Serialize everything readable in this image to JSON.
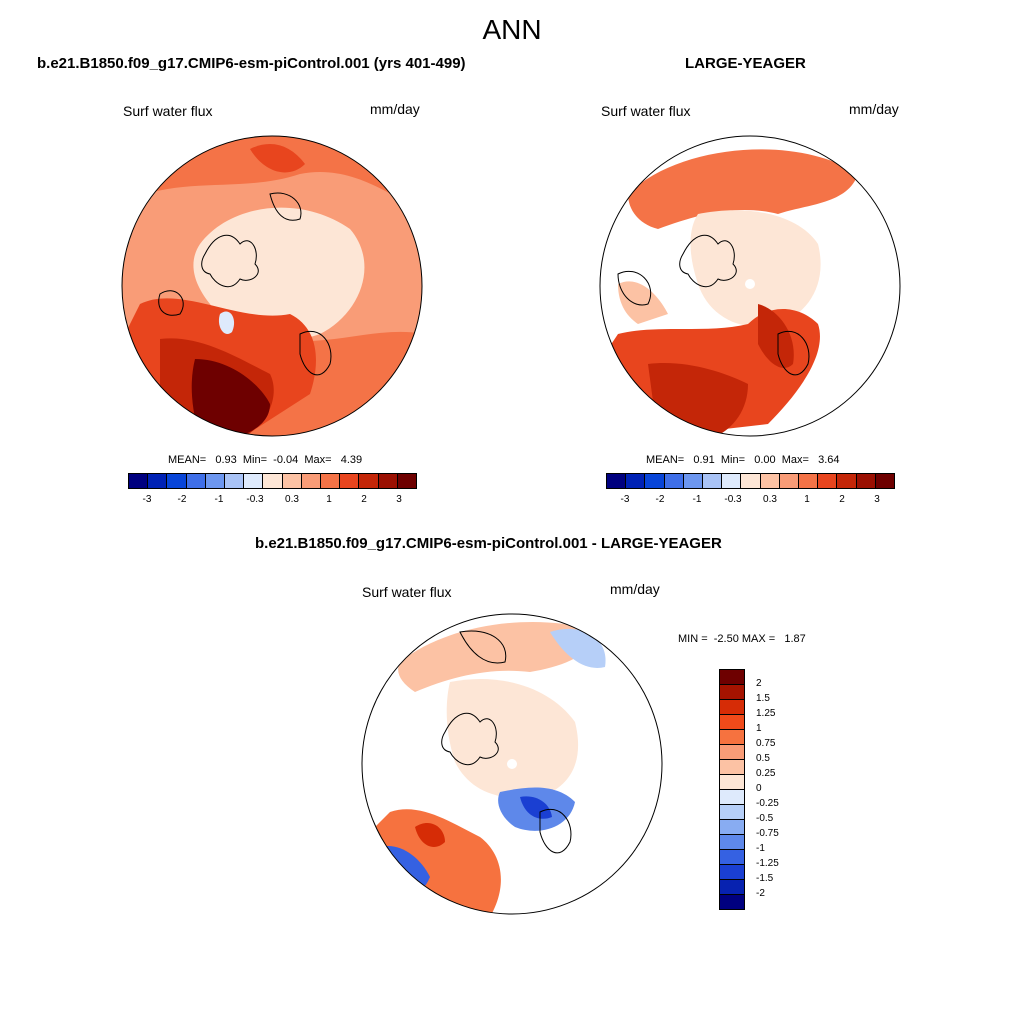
{
  "title": "ANN",
  "panels": [
    {
      "heading": "b.e21.B1850.f09_g17.CMIP6-esm-piControl.001 (yrs 401-499)",
      "variable": "Surf water flux",
      "units": "mm/day",
      "stats": "MEAN=   0.93  Min=  -0.04  Max=   4.39"
    },
    {
      "heading": "LARGE-YEAGER",
      "variable": "Surf water flux",
      "units": "mm/day",
      "stats": "MEAN=   0.91  Min=   0.00  Max=   3.64"
    },
    {
      "heading": "b.e21.B1850.f09_g17.CMIP6-esm-piControl.001 - LARGE-YEAGER",
      "variable": "Surf water flux",
      "units": "mm/day",
      "stats": "MIN =  -2.50 MAX =   1.87"
    }
  ],
  "colorbar_main": {
    "colors": [
      "#00007f",
      "#0022b5",
      "#0845d8",
      "#3f6fe8",
      "#6d97f0",
      "#a9c3f6",
      "#deeafc",
      "#fde6d6",
      "#fcc2a4",
      "#f99c77",
      "#f47347",
      "#e8451e",
      "#c42608",
      "#9b1002",
      "#6e0000"
    ],
    "ticks": [
      "-3",
      "-2",
      "-1",
      "-0.3",
      "0.3",
      "1",
      "2",
      "3"
    ]
  },
  "colorbar_diff": {
    "colors": [
      "#6e0000",
      "#a51300",
      "#d62c06",
      "#f04a1a",
      "#f6723f",
      "#f99c77",
      "#fcc2a4",
      "#fde6d6",
      "#deeafc",
      "#b6cff8",
      "#88acf2",
      "#5e88ea",
      "#3561e2",
      "#1a3fd2",
      "#0722b0",
      "#00007f"
    ],
    "ticks": [
      "2",
      "1.5",
      "1.25",
      "1",
      "0.75",
      "0.5",
      "0.25",
      "0",
      "-0.25",
      "-0.5",
      "-0.75",
      "-1",
      "-1.25",
      "-1.5",
      "-2"
    ]
  }
}
